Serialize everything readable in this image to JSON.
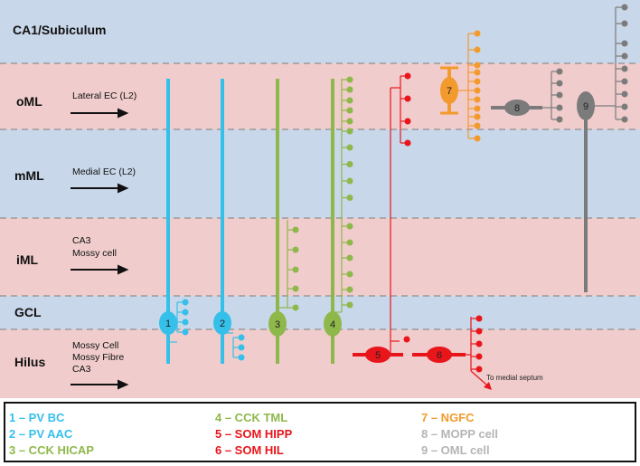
{
  "layers": [
    {
      "label": "CA1/Subiculum",
      "color": "#c9d7ea"
    },
    {
      "label": "oML",
      "color": "#f0cccc"
    },
    {
      "label": "mML",
      "color": "#c9d7ea"
    },
    {
      "label": "iML",
      "color": "#f0cccc"
    },
    {
      "label": "GCL",
      "color": "#c9d7ea"
    },
    {
      "label": "Hilus",
      "color": "#f0cccc"
    }
  ],
  "inputs": {
    "oml": [
      "Lateral EC (L2)"
    ],
    "mml": [
      "Medial EC (L2)"
    ],
    "iml": [
      "CA3",
      "Mossy cell"
    ],
    "hilus": [
      "Mossy Cell",
      "Mossy Fibre",
      "CA3"
    ]
  },
  "cells": [
    {
      "num": "1",
      "color": "#35c0ea"
    },
    {
      "num": "2",
      "color": "#35c0ea"
    },
    {
      "num": "3",
      "color": "#8fb84a"
    },
    {
      "num": "4",
      "color": "#8fb84a"
    },
    {
      "num": "5",
      "color": "#e8151b"
    },
    {
      "num": "6",
      "color": "#e8151b"
    },
    {
      "num": "7",
      "color": "#f39a2c"
    },
    {
      "num": "8",
      "color": "#7b7b7b"
    },
    {
      "num": "9",
      "color": "#7b7b7b"
    }
  ],
  "septum_note": "To medial septum",
  "legend": [
    {
      "text": "1 – PV BC",
      "color": "#35c0ea"
    },
    {
      "text": "2 – PV AAC",
      "color": "#35c0ea"
    },
    {
      "text": "3 – CCK HICAP",
      "color": "#8fb84a"
    },
    {
      "text": "4 – CCK TML",
      "color": "#8fb84a"
    },
    {
      "text": "5 – SOM HIPP",
      "color": "#e8151b"
    },
    {
      "text": "6 – SOM HIL",
      "color": "#e8151b"
    },
    {
      "text": "7 – NGFC",
      "color": "#f39a2c"
    },
    {
      "text": "8 – MOPP cell",
      "color": "#b5b5b5"
    },
    {
      "text": "9 – OML cell",
      "color": "#b5b5b5"
    }
  ]
}
